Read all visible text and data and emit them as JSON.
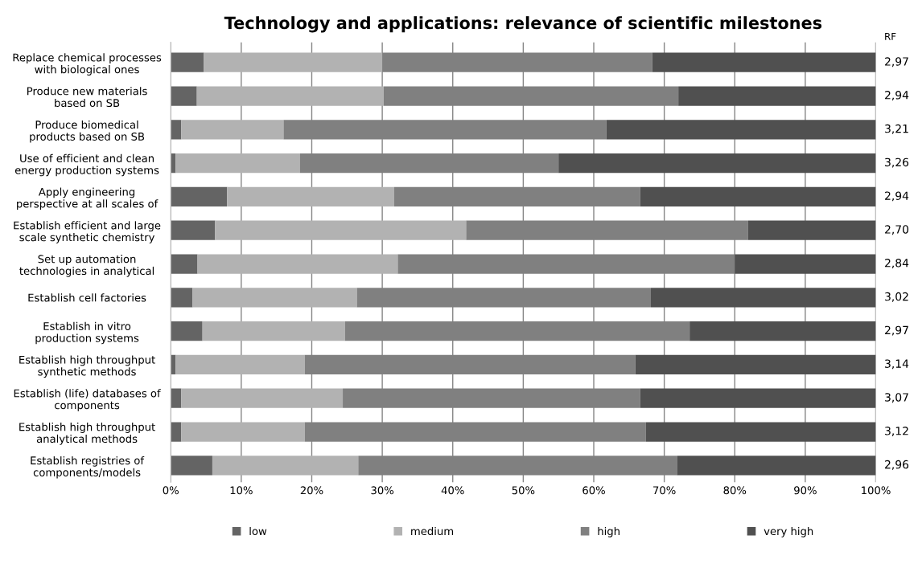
{
  "chart_data": {
    "type": "bar",
    "orientation": "horizontal",
    "stacked": true,
    "title": "Technology and applications: relevance of scientific milestones",
    "categories": [
      "Replace chemical processes\nwith biological ones",
      "Produce new materials\nbased on SB",
      "Produce biomedical\nproducts based on SB",
      "Use of efficient and clean\nenergy production systems",
      "Apply engineering\nperspective at all scales of",
      "Establish efficient and large\nscale synthetic chemistry",
      "Set up automation\ntechnologies in analytical",
      "Establish cell factories",
      "Establish in vitro\nproduction systems",
      "Establish high throughput\nsynthetic methods",
      "Establish (life) databases of\ncomponents",
      "Establish high throughput\nanalytical methods",
      "Establish registries of\ncomponents/models"
    ],
    "series": [
      {
        "name": "low",
        "color": "#646464",
        "values": [
          4.7,
          3.7,
          1.5,
          0.7,
          8.0,
          6.3,
          3.8,
          3.1,
          4.5,
          0.7,
          1.5,
          1.5,
          5.9
        ]
      },
      {
        "name": "medium",
        "color": "#b2b2b2",
        "values": [
          25.3,
          26.5,
          14.5,
          17.6,
          23.7,
          35.6,
          28.4,
          23.3,
          20.2,
          18.3,
          22.9,
          17.5,
          20.7
        ]
      },
      {
        "name": "high",
        "color": "#808080",
        "values": [
          38.3,
          41.8,
          45.8,
          36.7,
          34.9,
          40.0,
          47.8,
          41.7,
          48.9,
          46.9,
          42.2,
          48.4,
          45.2
        ]
      },
      {
        "name": "very high",
        "color": "#505050",
        "values": [
          31.7,
          28.0,
          38.2,
          45.0,
          33.4,
          18.1,
          20.0,
          31.9,
          26.4,
          34.1,
          33.4,
          32.6,
          28.2
        ]
      }
    ],
    "xlim": [
      0,
      100
    ],
    "xticks": [
      {
        "value": 0,
        "label": "0%"
      },
      {
        "value": 10,
        "label": "10%"
      },
      {
        "value": 20,
        "label": "20%"
      },
      {
        "value": 30,
        "label": "30%"
      },
      {
        "value": 40,
        "label": "40%"
      },
      {
        "value": 50,
        "label": "50%"
      },
      {
        "value": 60,
        "label": "60%"
      },
      {
        "value": 70,
        "label": "70%"
      },
      {
        "value": 80,
        "label": "80%"
      },
      {
        "value": 90,
        "label": "90%"
      },
      {
        "value": 100,
        "label": "100%"
      }
    ],
    "annotations": [
      "RF",
      "2,97",
      "2,94",
      "3,21",
      "3,26",
      "2,94",
      "2,70",
      "2,84",
      "3,02",
      "2,97",
      "3,14",
      "3,07",
      "3,12",
      "2,96"
    ],
    "grid": "x",
    "legend": "bottom"
  }
}
